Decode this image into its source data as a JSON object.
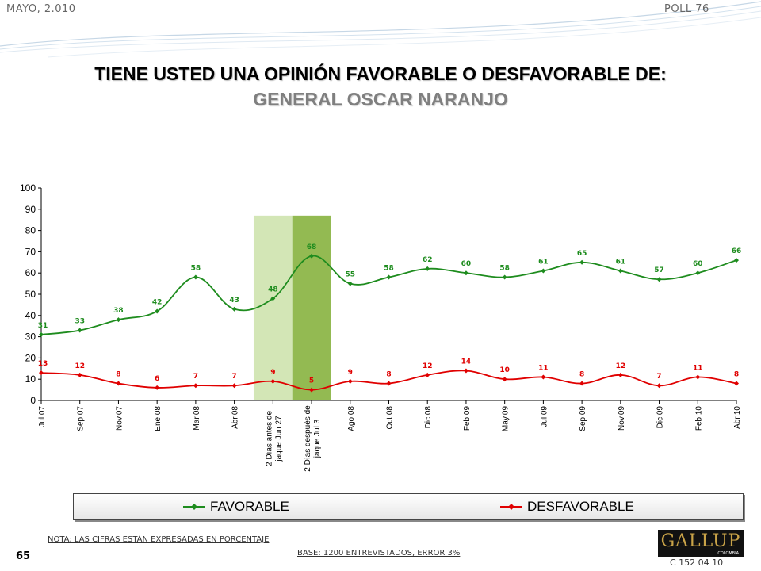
{
  "header": {
    "date": "MAYO, 2.010",
    "poll": "POLL 76",
    "title_line1": "TIENE USTED UNA OPINIÓN FAVORABLE O DESFAVORABLE DE:",
    "title_line2": "GENERAL OSCAR NARANJO"
  },
  "colors": {
    "favorable": "#1e8c1e",
    "desfavorable": "#e00000",
    "highlight_light": "#d3e6b6",
    "highlight_dark": "#93ba52"
  },
  "chart_data": {
    "type": "line",
    "categories": [
      "Jul.07",
      "Sep.07",
      "Nov.07",
      "Ene.08",
      "Mar.08",
      "Abr.08",
      "2 Días antes de jaque Jun 27",
      "2 Días después de jaque Jul 3",
      "Ago.08",
      "Oct.08",
      "Dic.08",
      "Feb.09",
      "May.09",
      "Jul.09",
      "Sep.09",
      "Nov.09",
      "Dic.09",
      "Feb.10",
      "Abr.10"
    ],
    "series": [
      {
        "name": "FAVORABLE",
        "values": [
          31,
          33,
          38,
          42,
          58,
          43,
          48,
          68,
          55,
          58,
          62,
          60,
          58,
          61,
          65,
          61,
          57,
          60,
          66
        ]
      },
      {
        "name": "DESFAVORABLE",
        "values": [
          13,
          12,
          8,
          6,
          7,
          7,
          9,
          5,
          9,
          8,
          12,
          14,
          10,
          11,
          8,
          12,
          7,
          11,
          8
        ]
      }
    ],
    "ylim": [
      0,
      100
    ],
    "yticks": [
      0,
      10,
      20,
      30,
      40,
      50,
      60,
      70,
      80,
      90,
      100
    ],
    "highlight_bands": [
      {
        "category": "2 Días antes de jaque Jun 27"
      },
      {
        "category": "2 Días después de jaque Jul 3"
      }
    ],
    "legend_position": "bottom"
  },
  "legend": {
    "favorable": "FAVORABLE",
    "desfavorable": "DESFAVORABLE"
  },
  "footer": {
    "note": "NOTA: LAS CIFRAS ESTÁN EXPRESADAS EN PORCENTAJE",
    "page_number": "65",
    "base": "BASE: 1200 ENTREVISTADOS, ERROR 3%",
    "logo": "GALLUP",
    "logo_sub": "COLOMBIA",
    "code": "C 152 04 10"
  }
}
